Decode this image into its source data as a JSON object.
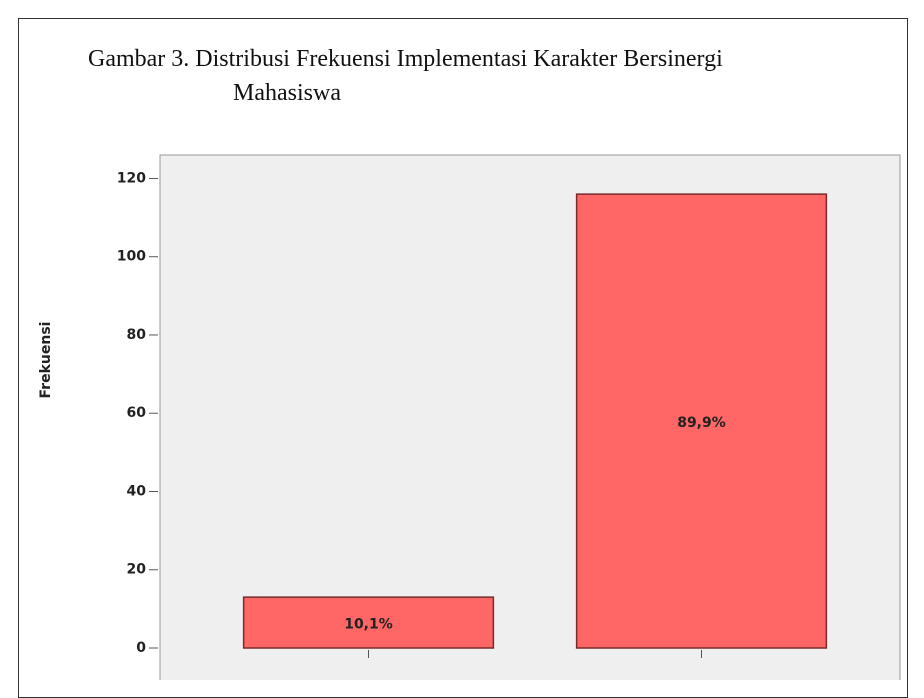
{
  "chart_data": {
    "type": "bar",
    "title": "Gambar 3. Distribusi Frekuensi Implementasi Karakter Bersinergi Mahasiswa",
    "y_label": "Frekuensi",
    "categories": [
      null,
      null
    ],
    "values": [
      13,
      116
    ],
    "value_labels": [
      "10,1%",
      "89,9%"
    ],
    "color": "#ff6666",
    "ylim": [
      0,
      126
    ],
    "yticks": [
      0,
      20,
      40,
      60,
      80,
      100,
      120
    ],
    "grid": false
  }
}
